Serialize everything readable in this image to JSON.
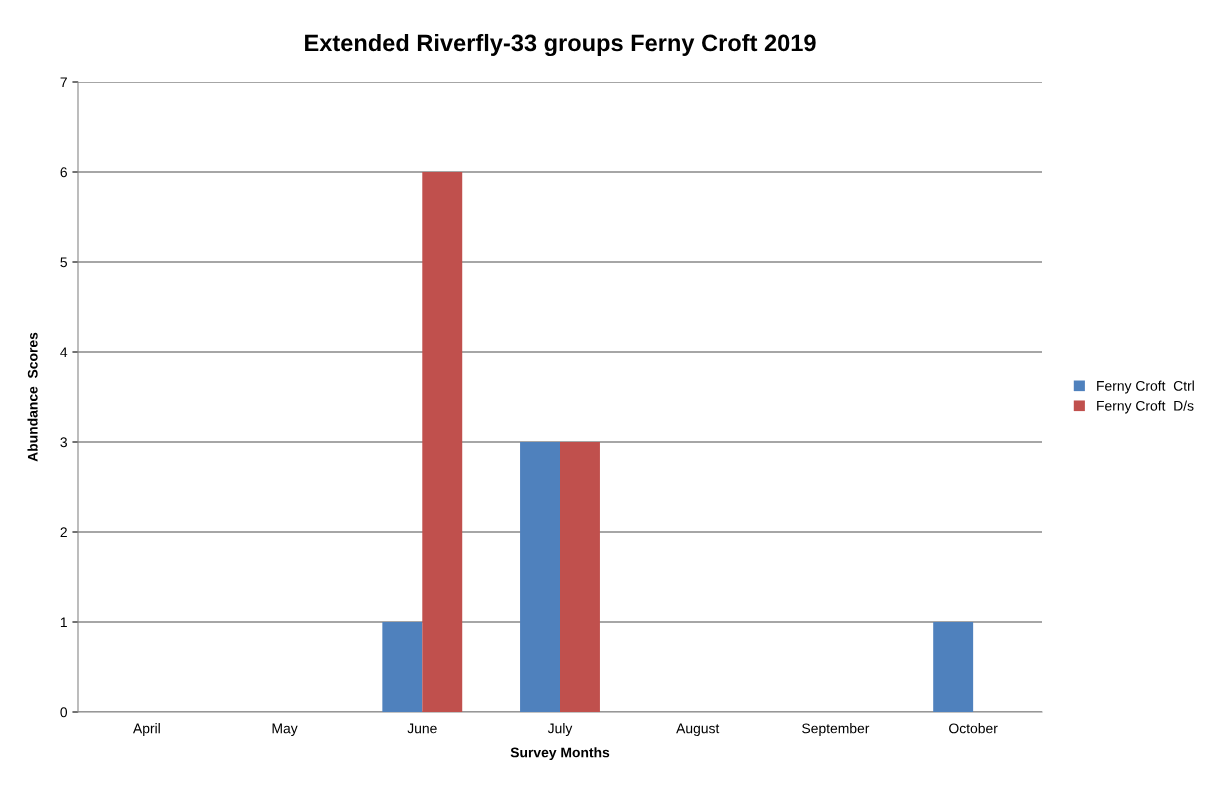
{
  "chart_data": {
    "type": "bar",
    "title": "Extended Riverfly-33 groups Ferny Croft 2019",
    "xlabel": "Survey Months",
    "ylabel": "Abundance  Scores",
    "categories": [
      "April",
      "May",
      "June",
      "July",
      "August",
      "September",
      "October"
    ],
    "series": [
      {
        "name": "Ferny Croft  Ctrl",
        "color": "#4f81bd",
        "values": [
          0,
          0,
          1,
          3,
          0,
          0,
          1
        ]
      },
      {
        "name": "Ferny Croft  D/s",
        "color": "#c0504d",
        "values": [
          0,
          0,
          6,
          3,
          0,
          0,
          0
        ]
      }
    ],
    "ylim": [
      0,
      7
    ],
    "yticks": [
      0,
      1,
      2,
      3,
      4,
      5,
      6,
      7
    ],
    "grid": "y",
    "legend": "right"
  }
}
